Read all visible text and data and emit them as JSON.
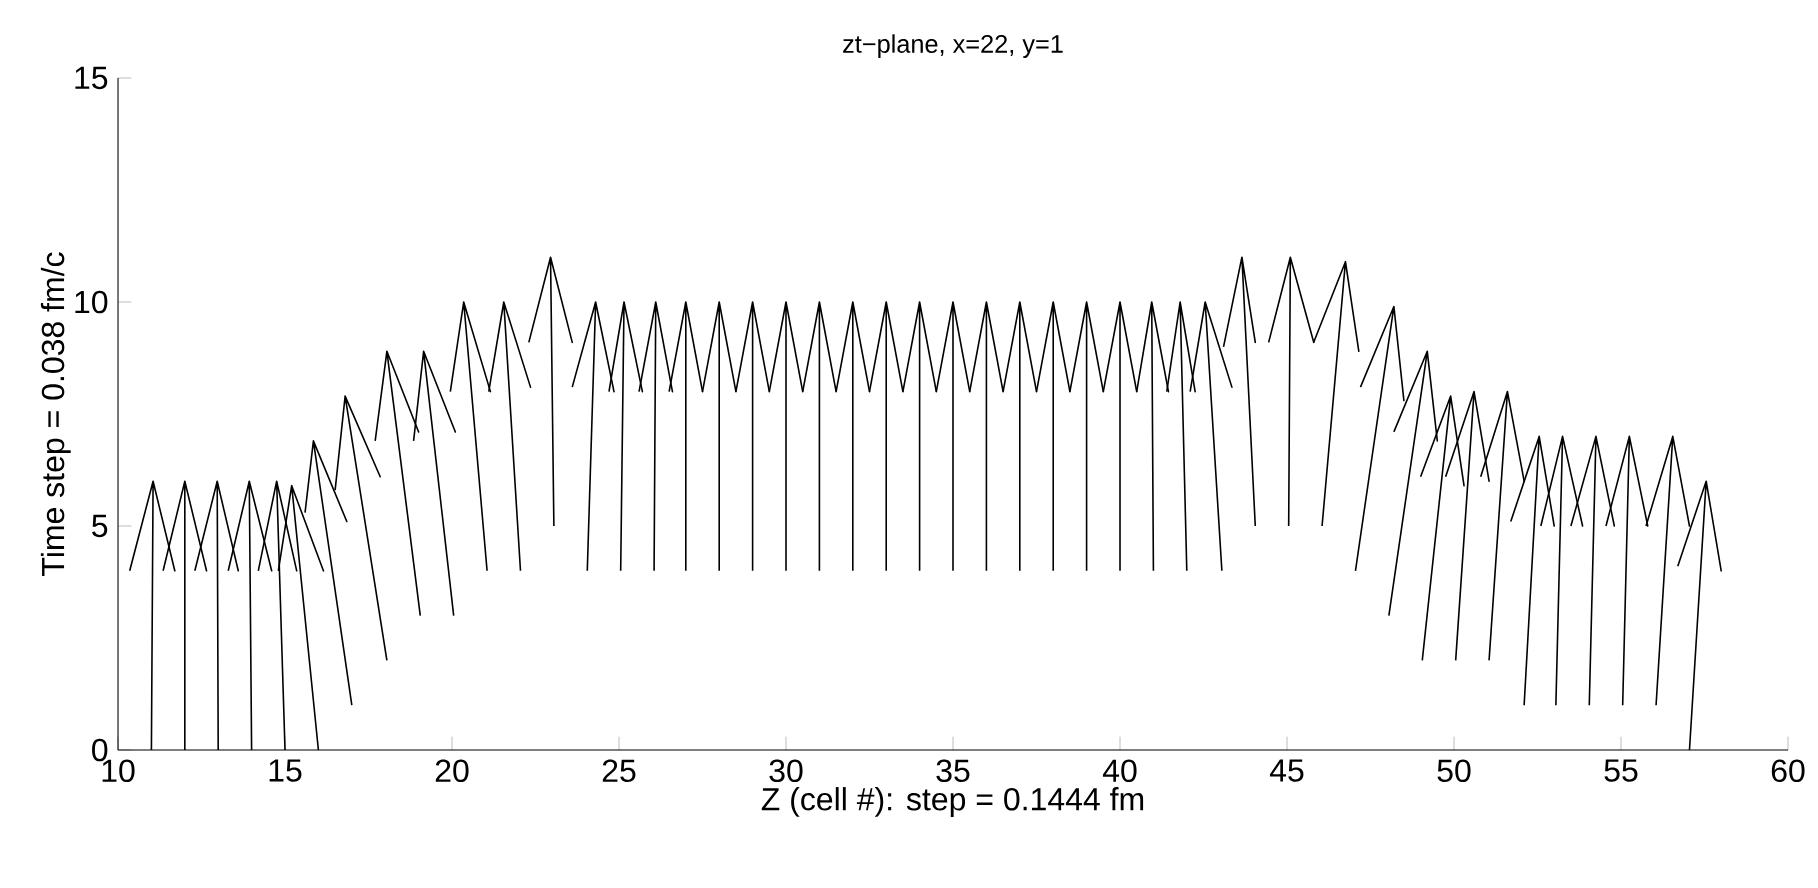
{
  "chart_data": {
    "type": "line",
    "title": "zt−plane, x=22, y=1",
    "xlabel": "Z (cell #): step = 0.1444 fm",
    "ylabel": "Time step = 0.038 fm/c",
    "xlim": [
      10,
      60
    ],
    "xticks": [
      10,
      15,
      20,
      25,
      30,
      35,
      40,
      45,
      50,
      55,
      60
    ],
    "ylim": [
      0,
      15
    ],
    "yticks": [
      0,
      5,
      10,
      15
    ],
    "series": [
      {
        "color": "#000000",
        "x": [
          10.35,
          11.05,
          11.7,
          11.05,
          11.0
        ],
        "values": [
          4,
          6,
          4,
          6,
          0
        ]
      },
      {
        "color": "#000000",
        "x": [
          11.35,
          12.0,
          12.65,
          12.0,
          12.0
        ],
        "values": [
          4,
          6,
          4,
          6,
          0
        ]
      },
      {
        "color": "#000000",
        "x": [
          12.3,
          12.97,
          13.6,
          12.97,
          13.0
        ],
        "values": [
          4,
          6,
          4,
          6,
          0
        ]
      },
      {
        "color": "#000000",
        "x": [
          13.3,
          13.93,
          14.6,
          13.93,
          14.0
        ],
        "values": [
          4,
          6,
          4,
          6,
          0
        ]
      },
      {
        "color": "#000000",
        "x": [
          14.2,
          14.75,
          15.35,
          14.75,
          15.0
        ],
        "values": [
          4,
          6,
          4,
          6,
          0
        ]
      },
      {
        "color": "#000000",
        "x": [
          14.8,
          15.2,
          16.15,
          15.2,
          16.0
        ],
        "values": [
          4,
          5.9,
          4,
          5.9,
          0
        ]
      },
      {
        "color": "#000000",
        "x": [
          15.6,
          15.85,
          16.85,
          15.85,
          17.0
        ],
        "values": [
          5.3,
          6.9,
          5.1,
          6.9,
          1
        ]
      },
      {
        "color": "#000000",
        "x": [
          16.5,
          16.8,
          17.85,
          16.8,
          18.05
        ],
        "values": [
          5.8,
          7.9,
          6.1,
          7.9,
          2
        ]
      },
      {
        "color": "#000000",
        "x": [
          17.7,
          18.05,
          19.0,
          18.05,
          19.05
        ],
        "values": [
          6.9,
          8.9,
          7.1,
          8.9,
          3
        ]
      },
      {
        "color": "#000000",
        "x": [
          18.85,
          19.15,
          20.1,
          19.15,
          20.05
        ],
        "values": [
          6.9,
          8.9,
          7.1,
          8.9,
          3
        ]
      },
      {
        "color": "#000000",
        "x": [
          19.95,
          20.35,
          21.15,
          20.35,
          21.05
        ],
        "values": [
          8,
          10,
          8,
          10,
          4
        ]
      },
      {
        "color": "#000000",
        "x": [
          21.1,
          21.55,
          22.35,
          21.55,
          22.05
        ],
        "values": [
          8,
          10,
          8.1,
          10,
          4
        ]
      },
      {
        "color": "#000000",
        "x": [
          22.3,
          22.95,
          23.6,
          22.95,
          23.05
        ],
        "values": [
          9.1,
          11,
          9.1,
          11,
          5
        ]
      },
      {
        "color": "#000000",
        "x": [
          23.6,
          24.3,
          24.85,
          24.3,
          24.05
        ],
        "values": [
          8.1,
          10,
          8,
          10,
          4
        ]
      },
      {
        "color": "#000000",
        "x": [
          24.7,
          25.15,
          25.7,
          25.15,
          25.05
        ],
        "values": [
          8,
          10,
          8,
          10,
          4
        ]
      },
      {
        "color": "#000000",
        "x": [
          25.6,
          26.1,
          26.6,
          26.1,
          26.05
        ],
        "values": [
          8,
          10,
          8,
          10,
          4
        ]
      },
      {
        "color": "#000000",
        "x": [
          26.5,
          27,
          27.5,
          27,
          27
        ],
        "values": [
          8,
          10,
          8,
          10,
          4
        ]
      },
      {
        "color": "#000000",
        "x": [
          27.5,
          28,
          28.5,
          28,
          28
        ],
        "values": [
          8,
          10,
          8,
          10,
          4
        ]
      },
      {
        "color": "#000000",
        "x": [
          28.5,
          29,
          29.5,
          29,
          29
        ],
        "values": [
          8,
          10,
          8,
          10,
          4
        ]
      },
      {
        "color": "#000000",
        "x": [
          29.5,
          30,
          30.5,
          30,
          30
        ],
        "values": [
          8,
          10,
          8,
          10,
          4
        ]
      },
      {
        "color": "#000000",
        "x": [
          30.5,
          31,
          31.5,
          31,
          31
        ],
        "values": [
          8,
          10,
          8,
          10,
          4
        ]
      },
      {
        "color": "#000000",
        "x": [
          31.5,
          32,
          32.5,
          32,
          32
        ],
        "values": [
          8,
          10,
          8,
          10,
          4
        ]
      },
      {
        "color": "#000000",
        "x": [
          32.5,
          33,
          33.5,
          33,
          33
        ],
        "values": [
          8,
          10,
          8,
          10,
          4
        ]
      },
      {
        "color": "#000000",
        "x": [
          33.5,
          34,
          34.5,
          34,
          34
        ],
        "values": [
          8,
          10,
          8,
          10,
          4
        ]
      },
      {
        "color": "#000000",
        "x": [
          34.5,
          35,
          35.5,
          35,
          35
        ],
        "values": [
          8,
          10,
          8,
          10,
          4
        ]
      },
      {
        "color": "#000000",
        "x": [
          35.5,
          36,
          36.5,
          36,
          36
        ],
        "values": [
          8,
          10,
          8,
          10,
          4
        ]
      },
      {
        "color": "#000000",
        "x": [
          36.5,
          37,
          37.5,
          37,
          37
        ],
        "values": [
          8,
          10,
          8,
          10,
          4
        ]
      },
      {
        "color": "#000000",
        "x": [
          37.5,
          38,
          38.5,
          38,
          38
        ],
        "values": [
          8,
          10,
          8,
          10,
          4
        ]
      },
      {
        "color": "#000000",
        "x": [
          38.5,
          39,
          39.5,
          39,
          39
        ],
        "values": [
          8,
          10,
          8,
          10,
          4
        ]
      },
      {
        "color": "#000000",
        "x": [
          39.5,
          40,
          40.5,
          40,
          40
        ],
        "values": [
          8,
          10,
          8,
          10,
          4
        ]
      },
      {
        "color": "#000000",
        "x": [
          40.5,
          40.95,
          41.45,
          40.95,
          41.0
        ],
        "values": [
          8,
          10,
          8,
          10,
          4
        ]
      },
      {
        "color": "#000000",
        "x": [
          41.4,
          41.8,
          42.25,
          41.8,
          42.0
        ],
        "values": [
          8,
          10,
          8,
          10,
          4
        ]
      },
      {
        "color": "#000000",
        "x": [
          42.1,
          42.55,
          43.35,
          42.55,
          43.05
        ],
        "values": [
          8,
          10,
          8.1,
          10,
          4
        ]
      },
      {
        "color": "#000000",
        "x": [
          43.1,
          43.65,
          44.05,
          43.65,
          44.05
        ],
        "values": [
          9,
          11,
          9.1,
          11,
          5
        ]
      },
      {
        "color": "#000000",
        "x": [
          44.45,
          45.1,
          45.8,
          45.1,
          45.05
        ],
        "values": [
          9.1,
          11,
          9.1,
          11,
          5
        ]
      },
      {
        "color": "#000000",
        "x": [
          45.8,
          46.75,
          47.15,
          46.75,
          46.05
        ],
        "values": [
          9.1,
          10.9,
          8.9,
          10.9,
          5
        ]
      },
      {
        "color": "#000000",
        "x": [
          47.2,
          48.2,
          48.5,
          48.2,
          47.05
        ],
        "values": [
          8.1,
          9.9,
          7.8,
          9.9,
          4
        ]
      },
      {
        "color": "#000000",
        "x": [
          48.2,
          49.2,
          49.5,
          49.2,
          48.05
        ],
        "values": [
          7.1,
          8.9,
          6.9,
          8.9,
          3
        ]
      },
      {
        "color": "#000000",
        "x": [
          49.0,
          49.9,
          50.3,
          49.9,
          49.05
        ],
        "values": [
          6.1,
          7.9,
          5.9,
          7.9,
          2
        ]
      },
      {
        "color": "#000000",
        "x": [
          49.75,
          50.6,
          51.05,
          50.6,
          50.05
        ],
        "values": [
          6.1,
          8,
          6,
          8,
          2
        ]
      },
      {
        "color": "#000000",
        "x": [
          50.8,
          51.6,
          52.1,
          51.6,
          51.05
        ],
        "values": [
          6.1,
          8,
          6,
          8,
          2
        ]
      },
      {
        "color": "#000000",
        "x": [
          51.7,
          52.55,
          53.0,
          52.55,
          52.1
        ],
        "values": [
          5.1,
          7,
          5,
          7,
          1
        ]
      },
      {
        "color": "#000000",
        "x": [
          52.6,
          53.25,
          53.85,
          53.25,
          53.05
        ],
        "values": [
          5,
          7,
          5,
          7,
          1
        ]
      },
      {
        "color": "#000000",
        "x": [
          53.5,
          54.25,
          54.8,
          54.25,
          54.05
        ],
        "values": [
          5,
          7,
          5,
          7,
          1
        ]
      },
      {
        "color": "#000000",
        "x": [
          54.55,
          55.25,
          55.8,
          55.25,
          55.05
        ],
        "values": [
          5,
          7,
          5,
          7,
          1
        ]
      },
      {
        "color": "#000000",
        "x": [
          55.75,
          56.55,
          57.05,
          56.55,
          56.05
        ],
        "values": [
          5,
          7,
          5,
          7,
          1
        ]
      },
      {
        "color": "#000000",
        "x": [
          56.7,
          57.55,
          58.0,
          57.55,
          57.05
        ],
        "values": [
          4.1,
          6,
          4,
          6,
          0
        ]
      }
    ]
  }
}
